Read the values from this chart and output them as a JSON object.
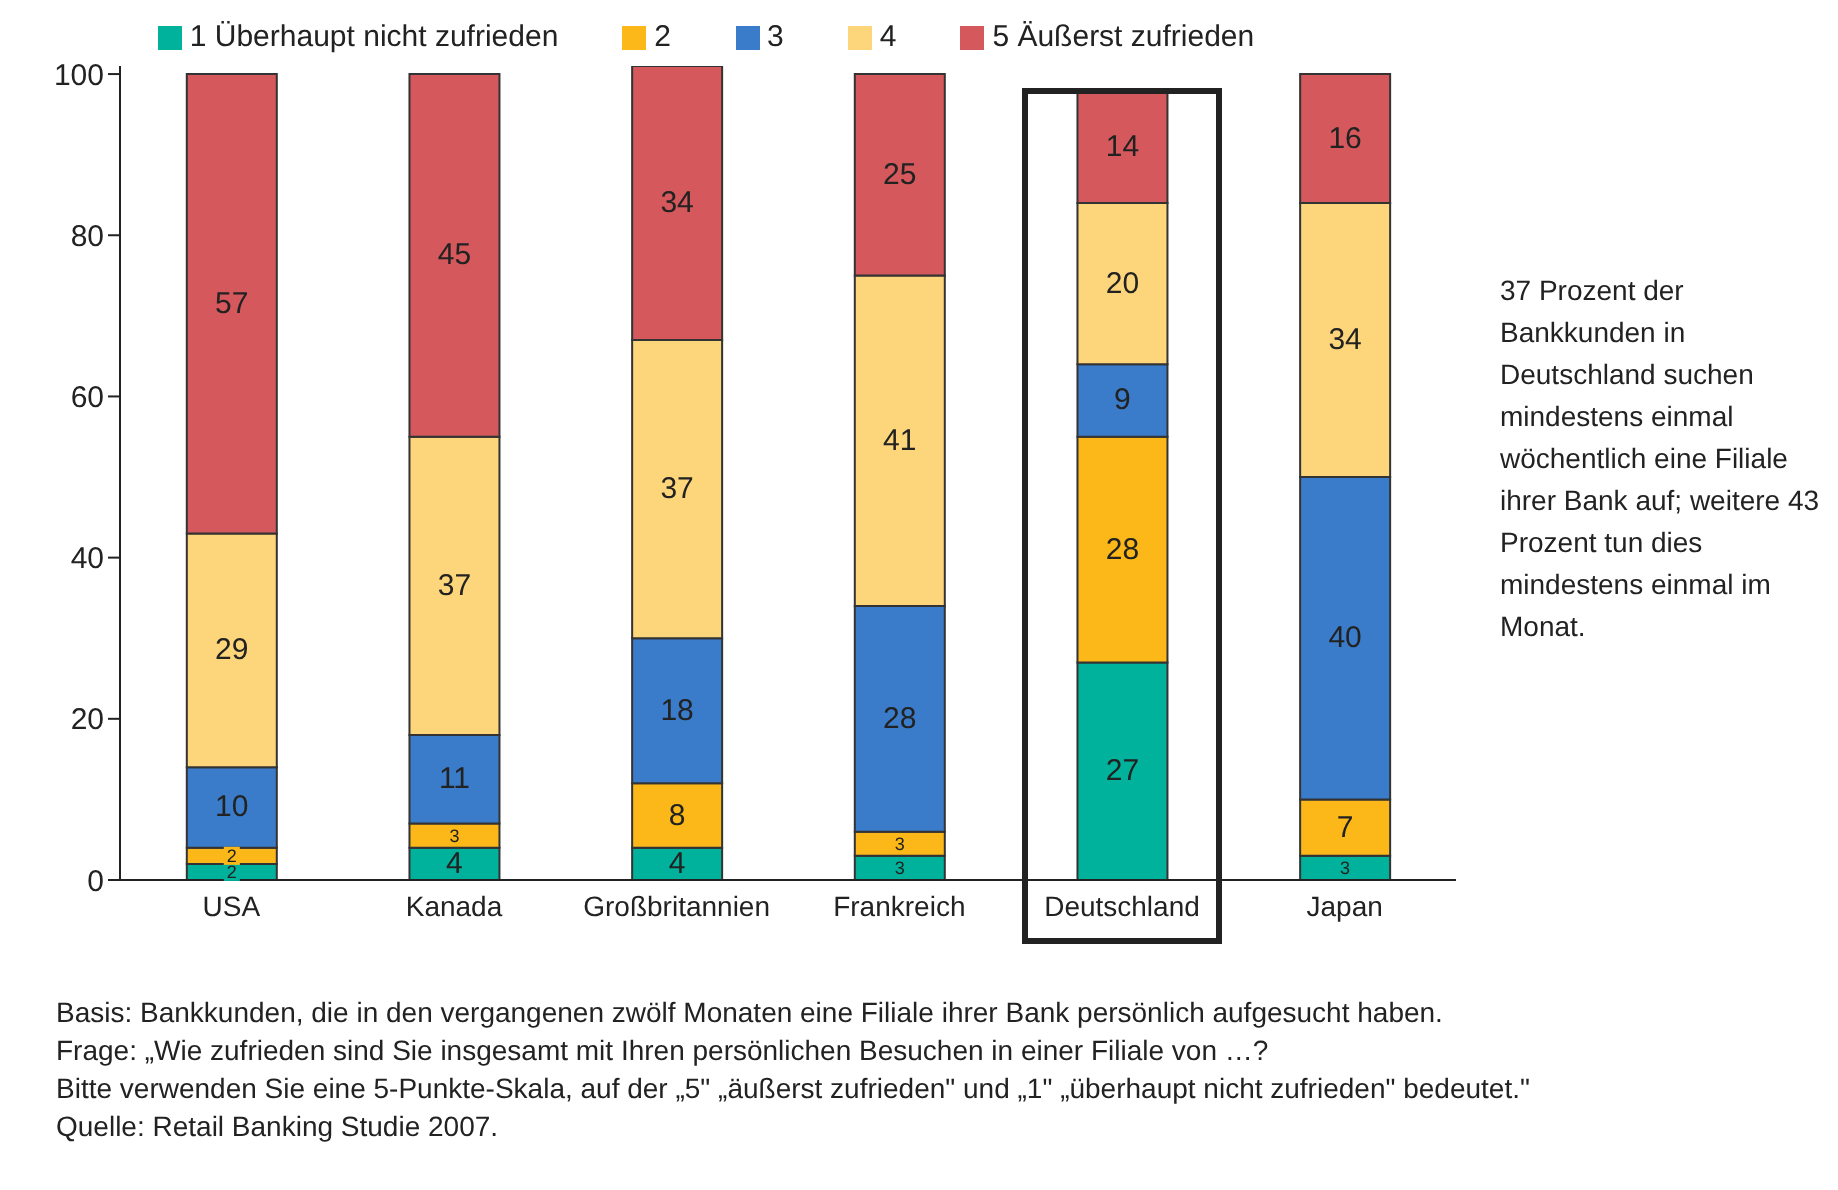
{
  "chart_data": {
    "type": "bar",
    "stacked": true,
    "categories": [
      "USA",
      "Kanada",
      "Großbritannien",
      "Frankreich",
      "Deutschland",
      "Japan"
    ],
    "series": [
      {
        "name": "1 Überhaupt nicht zufrieden",
        "color": "#00b29c",
        "values": [
          2,
          4,
          4,
          3,
          27,
          3
        ]
      },
      {
        "name": "2",
        "color": "#fbb818",
        "values": [
          2,
          3,
          8,
          3,
          28,
          7
        ]
      },
      {
        "name": "3",
        "color": "#3a7cc9",
        "values": [
          10,
          11,
          18,
          28,
          9,
          40
        ]
      },
      {
        "name": "4",
        "color": "#fdd57a",
        "values": [
          29,
          37,
          37,
          41,
          20,
          34
        ]
      },
      {
        "name": "5 Äußerst zufrieden",
        "color": "#d4585c",
        "values": [
          57,
          45,
          34,
          25,
          14,
          16
        ]
      }
    ],
    "ylim": [
      0,
      101
    ],
    "yticks": [
      0,
      20,
      40,
      60,
      80,
      100
    ],
    "grid": false,
    "legend": "top",
    "data_labels": true,
    "annotations": [
      "37 Prozent der Bankkunden in Deutschland suchen mindestens einmal wöchentlich eine Filiale ihrer Bank auf; weitere 43 Prozent tun dies mindestens einmal im Monat.",
      "Basis: Bankkunden, die in den vergangenen zwölf Monaten eine Filiale ihrer Bank persönlich aufgesucht haben.",
      "Frage: „Wie zufrieden sind Sie insgesamt mit Ihren persönlichen Besuchen in einer Filiale von …?",
      "Bitte verwenden Sie eine 5-Punkte-Skala, auf der „5\" „äußerst zufrieden\" und „1\" „überhaupt nicht zufrieden\" bedeutet.\"",
      "Quelle: Retail Banking Studie 2007."
    ]
  }
}
